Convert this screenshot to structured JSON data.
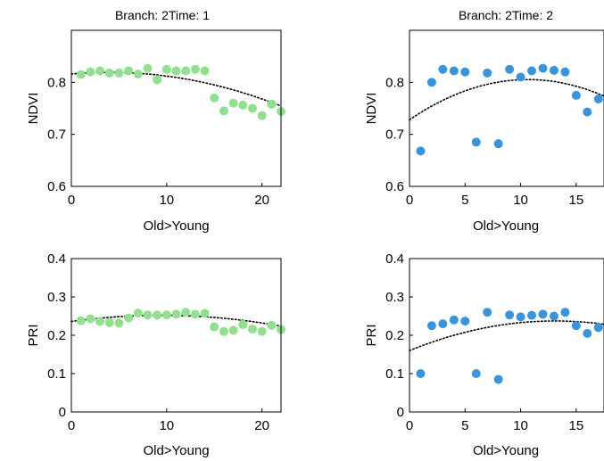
{
  "chart_data": [
    {
      "type": "scatter",
      "title": "Branch: 2Time: 1",
      "xlabel": "Old>Young",
      "ylabel": "NDVI",
      "xlim": [
        0,
        22
      ],
      "ylim": [
        0.6,
        0.9
      ],
      "xticks": [
        "0",
        "10",
        "20"
      ],
      "yticks": [
        "0.6",
        "0.7",
        "0.8"
      ],
      "xtick_values": [
        0,
        10,
        20
      ],
      "ytick_values": [
        0.6,
        0.7,
        0.8
      ],
      "marker_color": "#90e090",
      "x": [
        1,
        2,
        3,
        4,
        5,
        6,
        7,
        8,
        9,
        10,
        11,
        12,
        13,
        14,
        15,
        16,
        17,
        18,
        19,
        20,
        21,
        22
      ],
      "y": [
        0.815,
        0.82,
        0.822,
        0.818,
        0.818,
        0.822,
        0.816,
        0.827,
        0.805,
        0.825,
        0.822,
        0.822,
        0.825,
        0.822,
        0.77,
        0.745,
        0.76,
        0.756,
        0.75,
        0.736,
        0.758,
        0.744
      ],
      "trend": {
        "style": "dotted",
        "coefficients": [
          0.816,
          0.0016,
          -0.0002
        ]
      }
    },
    {
      "type": "scatter",
      "title": "Branch: 2Time: 2",
      "xlabel": "Old>Young",
      "ylabel": "NDVI",
      "xlim": [
        0,
        17.5
      ],
      "ylim": [
        0.6,
        0.9
      ],
      "xticks": [
        "0",
        "5",
        "10",
        "15"
      ],
      "yticks": [
        "0.6",
        "0.7",
        "0.8"
      ],
      "xtick_values": [
        0,
        5,
        10,
        15
      ],
      "ytick_values": [
        0.6,
        0.7,
        0.8
      ],
      "marker_color": "#3a94dc",
      "x": [
        1,
        2,
        3,
        4,
        5,
        6,
        7,
        8,
        9,
        10,
        11,
        12,
        13,
        14,
        15,
        16,
        17
      ],
      "y": [
        0.668,
        0.8,
        0.825,
        0.822,
        0.82,
        0.685,
        0.818,
        0.682,
        0.825,
        0.81,
        0.822,
        0.827,
        0.823,
        0.82,
        0.775,
        0.743,
        0.768
      ],
      "trend": {
        "style": "dotted",
        "coefficients": [
          0.728,
          0.0145,
          -0.00068
        ]
      }
    },
    {
      "type": "scatter",
      "title": "",
      "xlabel": "Old>Young",
      "ylabel": "PRI",
      "xlim": [
        0,
        22
      ],
      "ylim": [
        0,
        0.4
      ],
      "xticks": [
        "0",
        "10",
        "20"
      ],
      "yticks": [
        "0",
        "0.1",
        "0.2",
        "0.3",
        "0.4"
      ],
      "xtick_values": [
        0,
        10,
        20
      ],
      "ytick_values": [
        0,
        0.1,
        0.2,
        0.3,
        0.4
      ],
      "marker_color": "#90e090",
      "x": [
        1,
        2,
        3,
        4,
        5,
        6,
        7,
        8,
        9,
        10,
        11,
        12,
        13,
        14,
        15,
        16,
        17,
        18,
        19,
        20,
        21,
        22
      ],
      "y": [
        0.238,
        0.243,
        0.236,
        0.233,
        0.232,
        0.245,
        0.258,
        0.253,
        0.253,
        0.253,
        0.255,
        0.26,
        0.255,
        0.257,
        0.222,
        0.21,
        0.213,
        0.228,
        0.216,
        0.21,
        0.226,
        0.215
      ],
      "trend": {
        "style": "dotted",
        "coefficients": [
          0.236,
          0.0034,
          -0.00018
        ]
      }
    },
    {
      "type": "scatter",
      "title": "",
      "xlabel": "Old>Young",
      "ylabel": "PRI",
      "xlim": [
        0,
        17.5
      ],
      "ylim": [
        0,
        0.4
      ],
      "xticks": [
        "0",
        "5",
        "10",
        "15"
      ],
      "yticks": [
        "0",
        "0.1",
        "0.2",
        "0.3",
        "0.4"
      ],
      "xtick_values": [
        0,
        5,
        10,
        15
      ],
      "ytick_values": [
        0,
        0.1,
        0.2,
        0.3,
        0.4
      ],
      "marker_color": "#3a94dc",
      "x": [
        1,
        2,
        3,
        4,
        5,
        6,
        7,
        8,
        9,
        10,
        11,
        12,
        13,
        14,
        15,
        16,
        17
      ],
      "y": [
        0.1,
        0.225,
        0.23,
        0.24,
        0.237,
        0.1,
        0.26,
        0.085,
        0.253,
        0.248,
        0.252,
        0.255,
        0.25,
        0.26,
        0.225,
        0.205,
        0.22
      ],
      "trend": {
        "style": "dotted",
        "coefficients": [
          0.16,
          0.0118,
          -0.00045
        ]
      }
    }
  ]
}
